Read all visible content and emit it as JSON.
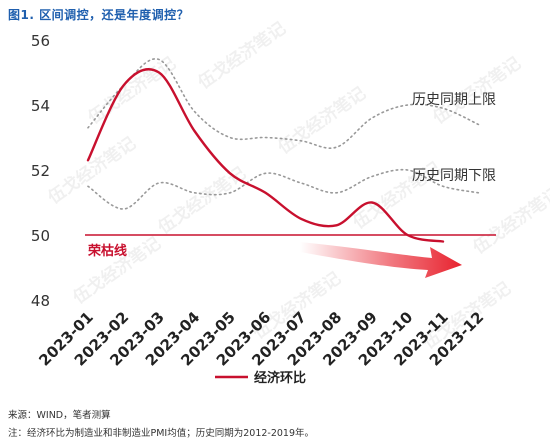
{
  "figure_title": "图1. 区间调控，还是年度调控？",
  "chart_data": {
    "type": "line",
    "categories": [
      "2023-01",
      "2023-02",
      "2023-03",
      "2023-04",
      "2023-05",
      "2023-06",
      "2023-07",
      "2023-08",
      "2023-09",
      "2023-10",
      "2023-11",
      "2023-12"
    ],
    "ylim": [
      48,
      56
    ],
    "yticks": [
      "48",
      "50",
      "52",
      "54",
      "56"
    ],
    "series": [
      {
        "name": "经济环比",
        "color": "#c8102e",
        "values": [
          52.3,
          54.6,
          55.0,
          53.2,
          51.9,
          51.3,
          50.5,
          50.3,
          51.0,
          50.0,
          49.8,
          null
        ]
      },
      {
        "name": "历史同期上限",
        "color": "#999999",
        "values": [
          53.3,
          54.6,
          55.4,
          53.8,
          53.0,
          53.0,
          52.9,
          52.7,
          53.6,
          54.0,
          53.9,
          53.4
        ]
      },
      {
        "name": "历史同期下限",
        "color": "#999999",
        "values": [
          51.5,
          50.8,
          51.6,
          51.3,
          51.3,
          51.9,
          51.6,
          51.3,
          51.8,
          52.0,
          51.5,
          51.3
        ]
      }
    ],
    "reference_line": {
      "value": 50,
      "label": "荣枯线",
      "color": "#c8102e"
    },
    "annotations": [
      "历史同期上限",
      "历史同期下限"
    ],
    "legend": "bottom-center"
  },
  "legend_label": "经济环比",
  "watermark": "伍戈经济笔记",
  "notes": [
    "来源：WIND，笔者测算",
    "注：经济环比为制造业和非制造业PMI均值；历史同期为2012-2019年。"
  ]
}
